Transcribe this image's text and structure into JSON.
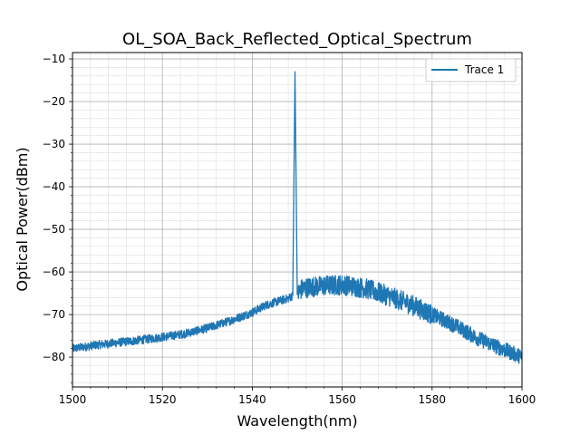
{
  "chart_data": {
    "type": "line",
    "title": "OL_SOA_Back_Reflected_Optical_Spectrum",
    "xlabel": "Wavelength(nm)",
    "ylabel": "Optical Power(dBm)",
    "xlim": [
      1500,
      1600
    ],
    "ylim": [
      -87,
      -8.5
    ],
    "x_ticks": [
      1500,
      1520,
      1540,
      1560,
      1580,
      1600
    ],
    "y_ticks": [
      -80,
      -70,
      -60,
      -50,
      -40,
      -30,
      -20,
      -10
    ],
    "x_minor_step": 4,
    "y_minor_step": 2,
    "grid": true,
    "legend_position": "top-right",
    "series": [
      {
        "name": "Trace 1",
        "color": "#1f77b4",
        "x": [
          1500,
          1505,
          1510,
          1515,
          1520,
          1525,
          1530,
          1535,
          1540,
          1543,
          1546,
          1548,
          1549,
          1549.5,
          1550,
          1551,
          1553,
          1556,
          1560,
          1565,
          1570,
          1575,
          1580,
          1585,
          1590,
          1595,
          1600
        ],
        "y": [
          -78,
          -77.2,
          -76.6,
          -76,
          -75.3,
          -74.5,
          -73.2,
          -71.5,
          -69.5,
          -67.8,
          -66.8,
          -66.2,
          -65.5,
          -13,
          -65.3,
          -64,
          -63.5,
          -63.2,
          -63,
          -63.8,
          -65.5,
          -67.5,
          -70,
          -72.5,
          -75.5,
          -77.8,
          -80
        ]
      }
    ]
  }
}
